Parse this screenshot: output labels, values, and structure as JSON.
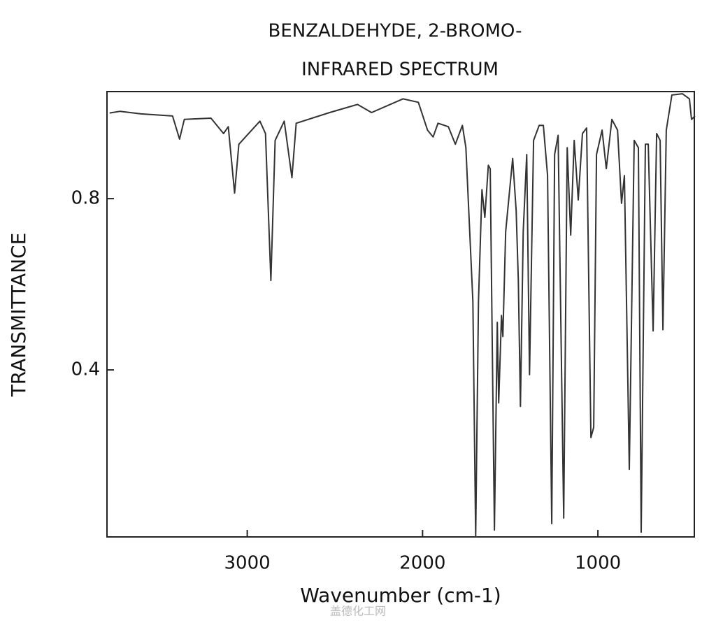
{
  "chart_data": {
    "type": "line",
    "title": "BENZALDEHYDE, 2-BROMO-",
    "subtitle": "INFRARED SPECTRUM",
    "x_label": "Wavenumber (cm-1)",
    "y_label": "TRANSMITTANCE",
    "watermark": "盖德化工网",
    "color": "#333333",
    "xlim": [
      3800,
      450
    ],
    "ylim": [
      0.01,
      1.05
    ],
    "xticks": [
      3000,
      2000,
      1000
    ],
    "yticks": [
      0.4,
      0.8
    ],
    "x": [
      3785,
      3725,
      3606,
      3426,
      3386,
      3359,
      3207,
      3135,
      3108,
      3072,
      3048,
      2928,
      2896,
      2865,
      2841,
      2789,
      2745,
      2721,
      2530,
      2371,
      2291,
      2112,
      2024,
      1972,
      1940,
      1912,
      1853,
      1813,
      1773,
      1753,
      1713,
      1697,
      1681,
      1661,
      1645,
      1625,
      1614,
      1590,
      1574,
      1566,
      1550,
      1542,
      1526,
      1486,
      1466,
      1454,
      1442,
      1426,
      1406,
      1390,
      1367,
      1335,
      1311,
      1287,
      1263,
      1247,
      1227,
      1195,
      1175,
      1155,
      1135,
      1112,
      1088,
      1064,
      1040,
      1024,
      1008,
      976,
      952,
      920,
      888,
      865,
      849,
      821,
      793,
      769,
      753,
      729,
      713,
      685,
      665,
      645,
      629,
      610,
      578,
      518,
      478,
      466,
      446
    ],
    "values": [
      1.0,
      1.004,
      0.998,
      0.993,
      0.939,
      0.985,
      0.988,
      0.952,
      0.968,
      0.813,
      0.927,
      0.981,
      0.952,
      0.609,
      0.936,
      0.981,
      0.849,
      0.976,
      1.001,
      1.02,
      1.001,
      1.033,
      1.025,
      0.96,
      0.944,
      0.976,
      0.968,
      0.927,
      0.971,
      0.919,
      0.56,
      0.01,
      0.56,
      0.821,
      0.756,
      0.878,
      0.87,
      0.026,
      0.511,
      0.323,
      0.527,
      0.478,
      0.723,
      0.894,
      0.772,
      0.609,
      0.315,
      0.723,
      0.903,
      0.389,
      0.936,
      0.971,
      0.971,
      0.854,
      0.041,
      0.903,
      0.948,
      0.054,
      0.919,
      0.715,
      0.936,
      0.797,
      0.952,
      0.965,
      0.242,
      0.266,
      0.903,
      0.96,
      0.87,
      0.985,
      0.96,
      0.789,
      0.854,
      0.168,
      0.936,
      0.919,
      0.021,
      0.927,
      0.927,
      0.491,
      0.952,
      0.936,
      0.494,
      0.96,
      1.042,
      1.045,
      1.033,
      0.985,
      0.993
    ]
  }
}
